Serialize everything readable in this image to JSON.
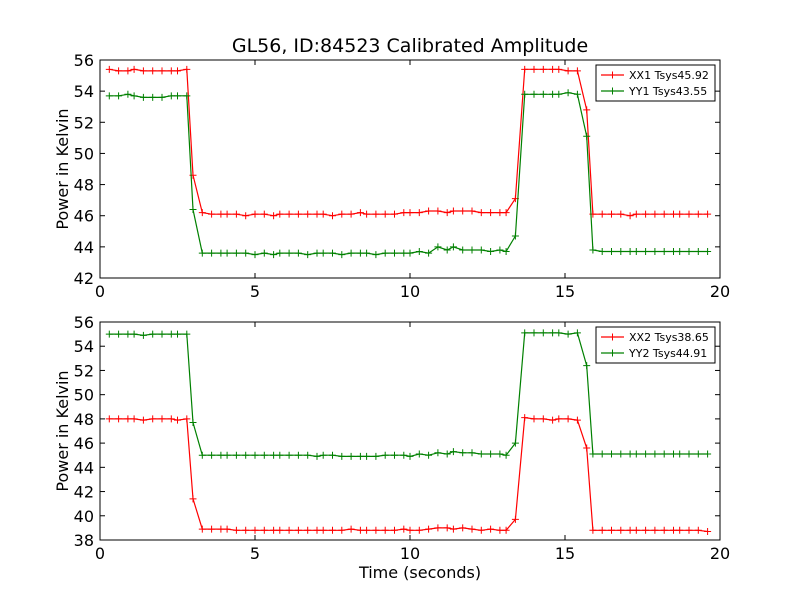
{
  "title": "GL56, ID:84523 Calibrated Amplitude",
  "chart_data": [
    {
      "type": "line",
      "title": "GL56, ID:84523 Calibrated Amplitude",
      "xlabel": "",
      "ylabel": "Power in Kelvin",
      "xlim": [
        0,
        20
      ],
      "ylim": [
        42,
        56
      ],
      "xticks": [
        0,
        5,
        10,
        15,
        20
      ],
      "yticks": [
        42,
        44,
        46,
        48,
        50,
        52,
        54,
        56
      ],
      "grid": false,
      "legend": "top-right",
      "x": [
        0.3,
        0.6,
        0.9,
        1.1,
        1.4,
        1.7,
        2.0,
        2.3,
        2.5,
        2.8,
        3.0,
        3.3,
        3.6,
        3.9,
        4.1,
        4.4,
        4.7,
        5.0,
        5.3,
        5.6,
        5.8,
        6.1,
        6.4,
        6.7,
        7.0,
        7.2,
        7.5,
        7.8,
        8.1,
        8.4,
        8.6,
        8.9,
        9.2,
        9.5,
        9.8,
        10.0,
        10.3,
        10.6,
        10.9,
        11.2,
        11.4,
        11.7,
        12.0,
        12.3,
        12.6,
        12.9,
        13.1,
        13.4,
        13.7,
        14.0,
        14.3,
        14.6,
        14.8,
        15.1,
        15.4,
        15.7,
        15.9,
        16.2,
        16.5,
        16.8,
        17.1,
        17.3,
        17.6,
        17.9,
        18.2,
        18.5,
        18.7,
        19.0,
        19.3,
        19.6
      ],
      "series": [
        {
          "name": "XX1 Tsys45.92",
          "color": "#ff0000",
          "values": [
            55.4,
            55.3,
            55.3,
            55.4,
            55.3,
            55.3,
            55.3,
            55.3,
            55.3,
            55.4,
            48.6,
            46.2,
            46.1,
            46.1,
            46.1,
            46.1,
            46.0,
            46.1,
            46.1,
            46.0,
            46.1,
            46.1,
            46.1,
            46.1,
            46.1,
            46.1,
            46.0,
            46.1,
            46.1,
            46.2,
            46.1,
            46.1,
            46.1,
            46.1,
            46.2,
            46.2,
            46.2,
            46.3,
            46.3,
            46.2,
            46.3,
            46.3,
            46.3,
            46.2,
            46.2,
            46.2,
            46.2,
            47.1,
            55.4,
            55.4,
            55.4,
            55.4,
            55.4,
            55.3,
            55.3,
            52.8,
            46.1,
            46.1,
            46.1,
            46.1,
            46.0,
            46.1,
            46.1,
            46.1,
            46.1,
            46.1,
            46.1,
            46.1,
            46.1,
            46.1
          ]
        },
        {
          "name": "YY1 Tsys43.55",
          "color": "#008000",
          "values": [
            53.7,
            53.7,
            53.8,
            53.7,
            53.6,
            53.6,
            53.6,
            53.7,
            53.7,
            53.7,
            46.4,
            43.6,
            43.6,
            43.6,
            43.6,
            43.6,
            43.6,
            43.5,
            43.6,
            43.5,
            43.6,
            43.6,
            43.6,
            43.5,
            43.6,
            43.6,
            43.6,
            43.5,
            43.6,
            43.6,
            43.6,
            43.5,
            43.6,
            43.6,
            43.6,
            43.6,
            43.7,
            43.6,
            44.0,
            43.8,
            44.0,
            43.8,
            43.8,
            43.8,
            43.7,
            43.8,
            43.7,
            44.7,
            53.8,
            53.8,
            53.8,
            53.8,
            53.8,
            53.9,
            53.8,
            51.1,
            43.8,
            43.7,
            43.7,
            43.7,
            43.7,
            43.7,
            43.7,
            43.7,
            43.7,
            43.7,
            43.7,
            43.7,
            43.7,
            43.7
          ]
        }
      ]
    },
    {
      "type": "line",
      "title": "",
      "xlabel": "Time (seconds)",
      "ylabel": "Power in Kelvin",
      "xlim": [
        0,
        20
      ],
      "ylim": [
        38,
        56
      ],
      "xticks": [
        0,
        5,
        10,
        15,
        20
      ],
      "yticks": [
        38,
        40,
        42,
        44,
        46,
        48,
        50,
        52,
        54,
        56
      ],
      "grid": false,
      "legend": "top-right",
      "x": [
        0.3,
        0.6,
        0.9,
        1.1,
        1.4,
        1.7,
        2.0,
        2.3,
        2.5,
        2.8,
        3.0,
        3.3,
        3.6,
        3.9,
        4.1,
        4.4,
        4.7,
        5.0,
        5.3,
        5.6,
        5.8,
        6.1,
        6.4,
        6.7,
        7.0,
        7.2,
        7.5,
        7.8,
        8.1,
        8.4,
        8.6,
        8.9,
        9.2,
        9.5,
        9.8,
        10.0,
        10.3,
        10.6,
        10.9,
        11.2,
        11.4,
        11.7,
        12.0,
        12.3,
        12.6,
        12.9,
        13.1,
        13.4,
        13.7,
        14.0,
        14.3,
        14.6,
        14.8,
        15.1,
        15.4,
        15.7,
        15.9,
        16.2,
        16.5,
        16.8,
        17.1,
        17.3,
        17.6,
        17.9,
        18.2,
        18.5,
        18.7,
        19.0,
        19.3,
        19.6
      ],
      "series": [
        {
          "name": "XX2 Tsys38.65",
          "color": "#ff0000",
          "values": [
            48.0,
            48.0,
            48.0,
            48.0,
            47.9,
            48.0,
            48.0,
            48.0,
            47.9,
            48.0,
            41.4,
            38.9,
            38.9,
            38.9,
            38.9,
            38.8,
            38.8,
            38.8,
            38.8,
            38.8,
            38.8,
            38.8,
            38.8,
            38.8,
            38.8,
            38.8,
            38.8,
            38.8,
            38.9,
            38.8,
            38.8,
            38.8,
            38.8,
            38.8,
            38.9,
            38.8,
            38.8,
            38.9,
            39.0,
            39.0,
            38.9,
            39.0,
            38.9,
            38.8,
            38.9,
            38.8,
            38.8,
            39.7,
            48.1,
            48.0,
            48.0,
            47.9,
            48.0,
            48.0,
            47.9,
            45.6,
            38.8,
            38.8,
            38.8,
            38.8,
            38.8,
            38.8,
            38.8,
            38.8,
            38.8,
            38.8,
            38.8,
            38.8,
            38.8,
            38.7
          ]
        },
        {
          "name": "YY2 Tsys44.91",
          "color": "#008000",
          "values": [
            55.0,
            55.0,
            55.0,
            55.0,
            54.9,
            55.0,
            55.0,
            55.0,
            55.0,
            55.0,
            47.7,
            45.0,
            45.0,
            45.0,
            45.0,
            45.0,
            45.0,
            45.0,
            45.0,
            45.0,
            45.0,
            45.0,
            45.0,
            45.0,
            44.9,
            45.0,
            45.0,
            44.9,
            44.9,
            44.9,
            44.9,
            44.9,
            45.0,
            45.0,
            45.0,
            44.9,
            45.1,
            45.0,
            45.2,
            45.1,
            45.3,
            45.2,
            45.2,
            45.1,
            45.1,
            45.1,
            45.0,
            46.0,
            55.1,
            55.1,
            55.1,
            55.1,
            55.1,
            55.0,
            55.1,
            52.4,
            45.1,
            45.1,
            45.1,
            45.1,
            45.1,
            45.1,
            45.1,
            45.1,
            45.1,
            45.1,
            45.1,
            45.1,
            45.1,
            45.1
          ]
        }
      ]
    }
  ]
}
